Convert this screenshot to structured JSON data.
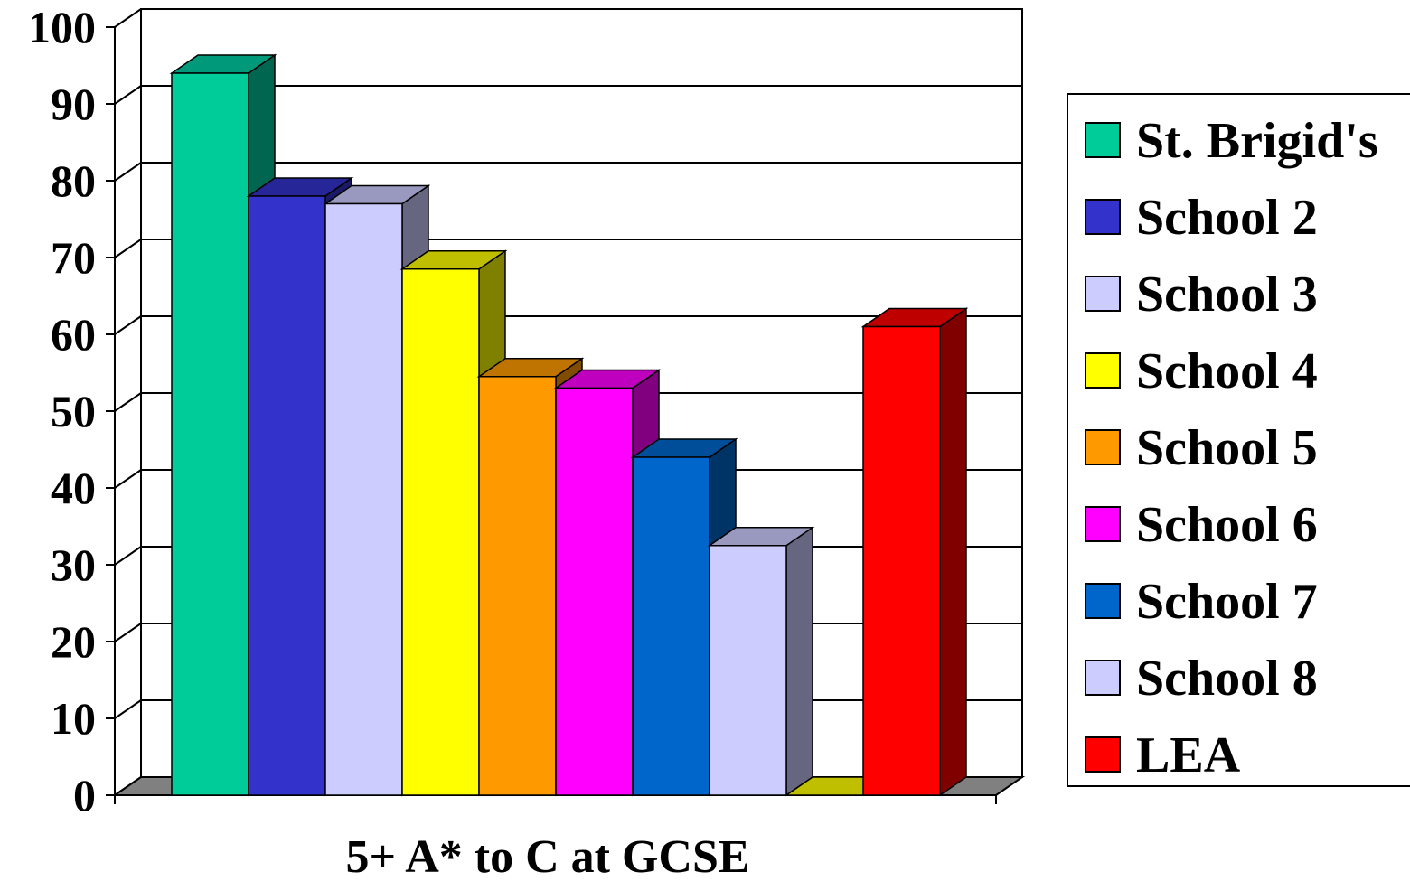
{
  "chart_data": {
    "type": "bar",
    "categories": [
      "5+ A* to C at GCSE"
    ],
    "xlabel": "5+ A* to C at GCSE",
    "ylabel": "",
    "ylim": [
      0,
      100
    ],
    "yticks": [
      0,
      10,
      20,
      30,
      40,
      50,
      60,
      70,
      80,
      90,
      100
    ],
    "grid": true,
    "legend_position": "right",
    "series": [
      {
        "name": "St. Brigid's",
        "values": [
          94
        ],
        "color": "#00CC99",
        "side": "#006650",
        "top": "#00997A"
      },
      {
        "name": "School 2",
        "values": [
          78
        ],
        "color": "#3333CC",
        "side": "#1A1A66",
        "top": "#262699"
      },
      {
        "name": "School 3",
        "values": [
          77
        ],
        "color": "#CCCCFF",
        "side": "#666680",
        "top": "#9999BF"
      },
      {
        "name": "School 4",
        "values": [
          68.5
        ],
        "color": "#FFFF00",
        "side": "#808000",
        "top": "#BFBF00"
      },
      {
        "name": "School 5",
        "values": [
          54.5
        ],
        "color": "#FF9900",
        "side": "#804D00",
        "top": "#BF7300"
      },
      {
        "name": "School 6",
        "values": [
          53
        ],
        "color": "#FF00FF",
        "side": "#800080",
        "top": "#BF00BF"
      },
      {
        "name": "School 7",
        "values": [
          44
        ],
        "color": "#0066CC",
        "side": "#003366",
        "top": "#004D99"
      },
      {
        "name": "School 8",
        "values": [
          32.5
        ],
        "color": "#CCCCFF",
        "side": "#666680",
        "top": "#9999BF"
      },
      {
        "name": "",
        "values": [
          0
        ],
        "color": "#FFFF00",
        "side": "#808000",
        "top": "#BFBF00"
      },
      {
        "name": "LEA",
        "values": [
          61
        ],
        "color": "#FF0000",
        "side": "#800000",
        "top": "#BF0000"
      }
    ]
  }
}
